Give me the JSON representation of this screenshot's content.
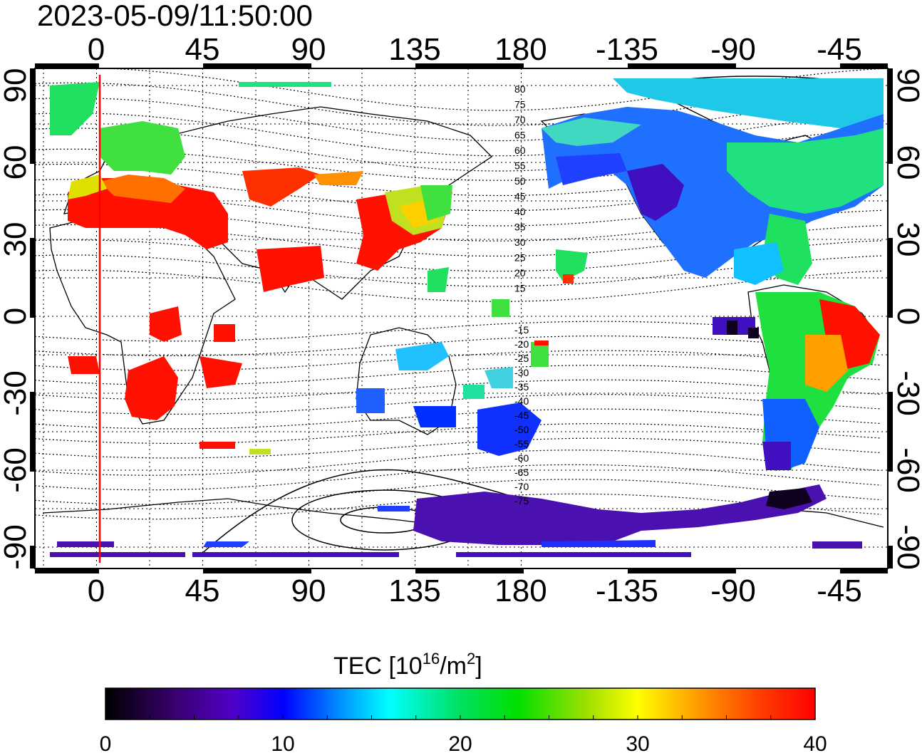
{
  "title": "2023-05-09/11:50:00",
  "map": {
    "top_lon_labels": [
      "0",
      "45",
      "90",
      "135",
      "180",
      "-135",
      "-90",
      "-45"
    ],
    "bottom_lon_labels": [
      "0",
      "45",
      "90",
      "135",
      "180",
      "-135",
      "-90",
      "-45"
    ],
    "left_lat_labels": [
      "90",
      "60",
      "30",
      "0",
      "-30",
      "-60",
      "-90"
    ],
    "right_lat_labels": [
      "90",
      "60",
      "30",
      "0",
      "-30",
      "-60",
      "-90"
    ],
    "magnetic_latitude_labels": [
      "80",
      "75",
      "70",
      "65",
      "60",
      "55",
      "50",
      "45",
      "40",
      "35",
      "30",
      "25",
      "20",
      "15",
      "-15",
      "-20",
      "-25",
      "-30",
      "-35",
      "-40",
      "-45",
      "-50",
      "-55",
      "-60",
      "-65",
      "-70",
      "-75"
    ],
    "terminator_color": "#ff0000"
  },
  "colorbar": {
    "label_prefix": "TEC  [10",
    "label_exp": "16",
    "label_mid": "/m",
    "label_exp2": "2",
    "label_suffix": "]",
    "ticks": [
      "0",
      "10",
      "20",
      "30",
      "40"
    ],
    "range": [
      0,
      40
    ],
    "colors": [
      "#000000",
      "#3a0070",
      "#5000c8",
      "#0000ff",
      "#00a0ff",
      "#00ffff",
      "#00e060",
      "#00e000",
      "#a0e000",
      "#ffff00",
      "#ffa000",
      "#ff4000",
      "#ff0000"
    ]
  }
}
